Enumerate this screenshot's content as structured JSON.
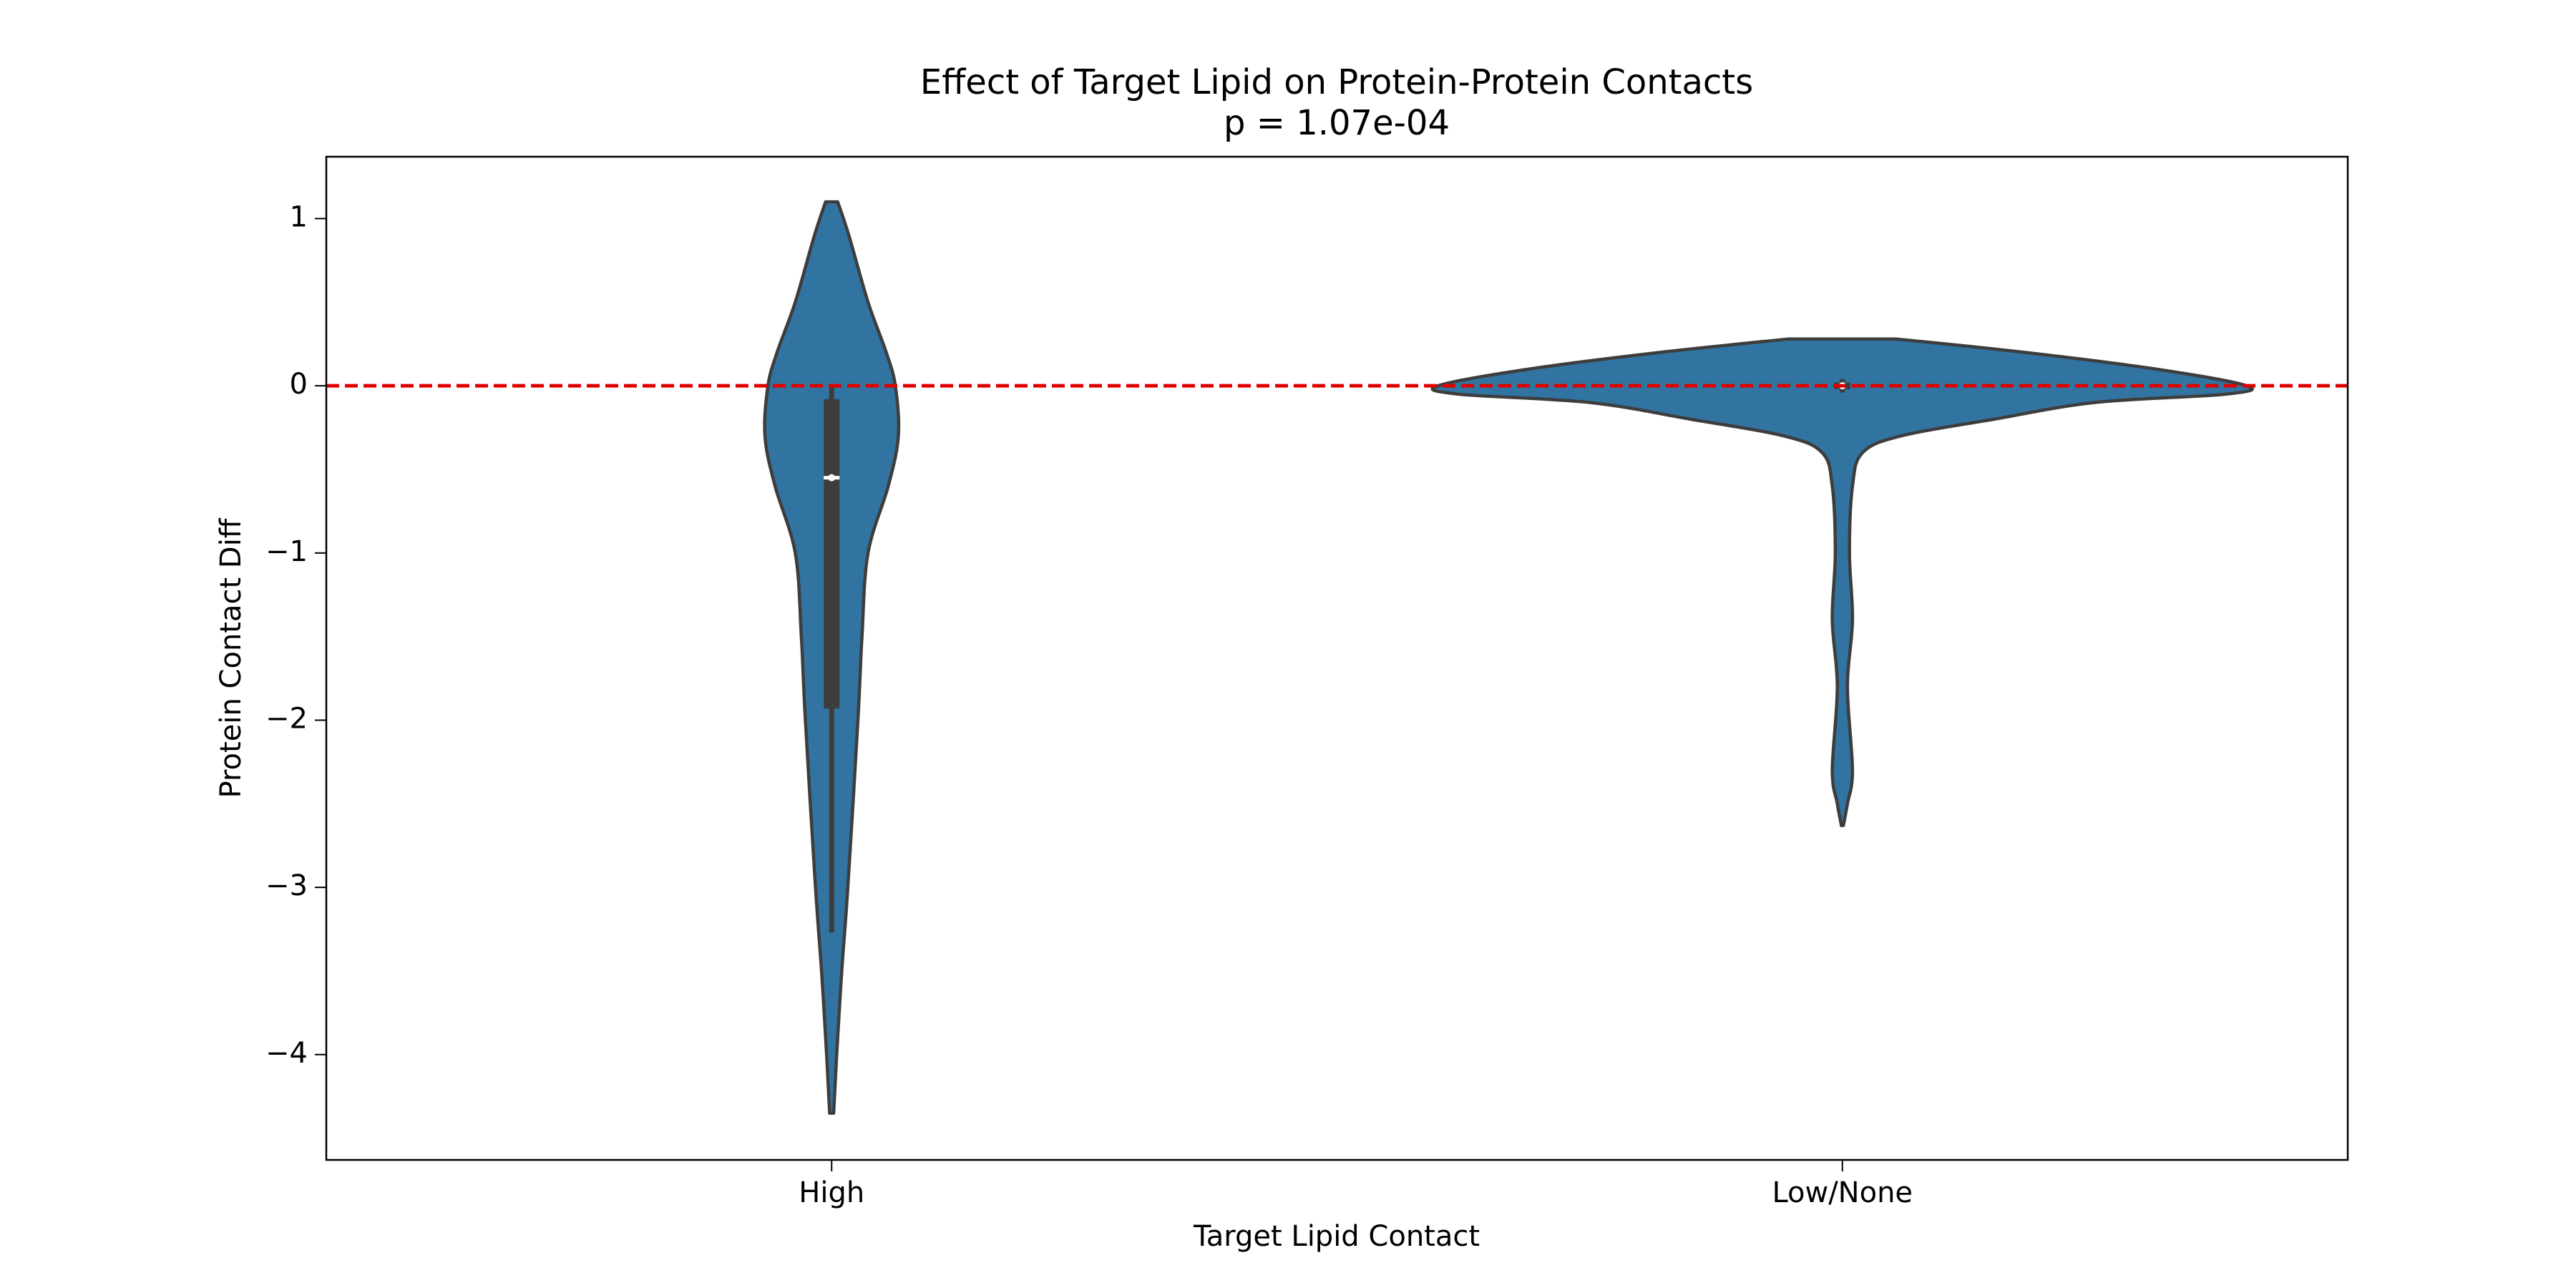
{
  "chart_data": {
    "type": "violin",
    "title": "Effect of Target Lipid on Protein-Protein Contacts",
    "subtitle": "p = 1.07e-04",
    "x_label": "Target Lipid Contact",
    "y_label": "Protein Contact Diff",
    "categories": [
      "High",
      "Low/None"
    ],
    "color": "#3274a1",
    "ylim": [
      -4.63,
      1.37
    ],
    "yticks": [
      1,
      0,
      {
        "value": -1,
        "label": "−1"
      },
      {
        "value": -2,
        "label": "−2"
      },
      {
        "value": -3,
        "label": "−3"
      },
      {
        "value": -4,
        "label": "−4"
      }
    ],
    "reference_line": {
      "value": 0,
      "color": "#e00000"
    },
    "violins": [
      {
        "y": [
          1.1,
          0.9,
          0.5,
          0.2,
          0,
          -0.3,
          -0.6,
          -1,
          -1.5,
          -2,
          -3,
          -3.5,
          -4,
          -4.35
        ],
        "half_width": [
          0.006,
          0.017,
          0.036,
          0.054,
          0.063,
          0.066,
          0.056,
          0.036,
          0.03,
          0.026,
          0.016,
          0.01,
          0.005,
          0.002
        ],
        "q1": -1.93,
        "median": -0.55,
        "q3": -0.08,
        "whisker_low": -3.27,
        "whisker_high": 0
      },
      {
        "y": [
          0.28,
          0.2,
          0.1,
          0,
          -0.05,
          -0.1,
          -0.2,
          -0.3,
          -0.4,
          -0.6,
          -1,
          -1.4,
          -1.8,
          -2.3,
          -2.5,
          -2.63
        ],
        "half_width": [
          0.053,
          0.18,
          0.31,
          0.4,
          0.38,
          0.25,
          0.15,
          0.058,
          0.02,
          0.01,
          0.007,
          0.01,
          0.005,
          0.01,
          0.005,
          0.001
        ],
        "q1": -0.02,
        "median": 0,
        "q3": 0.02,
        "whisker_low": -0.04,
        "whisker_high": 0.04
      }
    ]
  }
}
